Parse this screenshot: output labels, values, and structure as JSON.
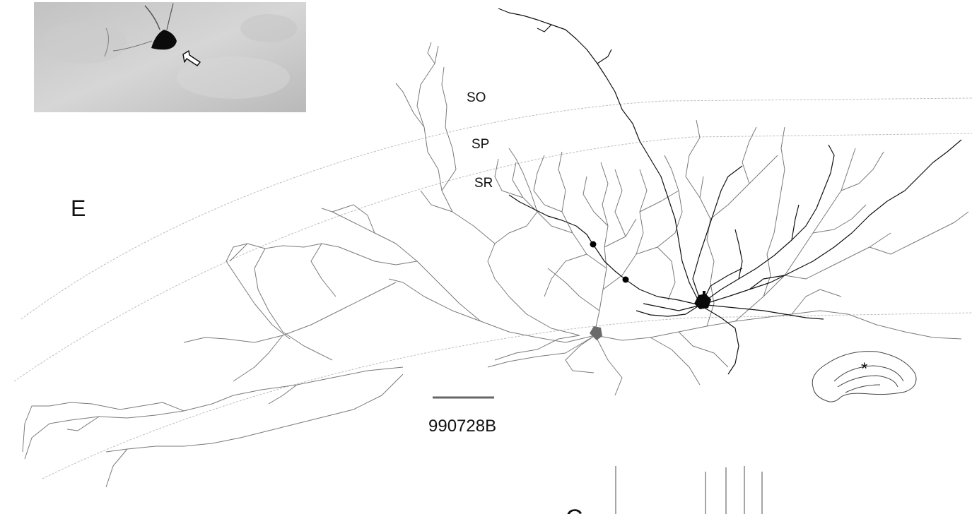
{
  "figure": {
    "panel_letter": "E",
    "cell_id": "990728B",
    "layers": {
      "so": "SO",
      "sp": "SP",
      "sr": "SR"
    },
    "inset_marker": "*",
    "partial_letter": "C"
  },
  "icons": {
    "photo_arrow": "hollow-arrow-icon"
  },
  "colors": {
    "dark_cell": "#111111",
    "grey_cell": "#7a7a7a",
    "layer_line": "#bdbdbd",
    "photo_bg": "#cfcfcf"
  }
}
